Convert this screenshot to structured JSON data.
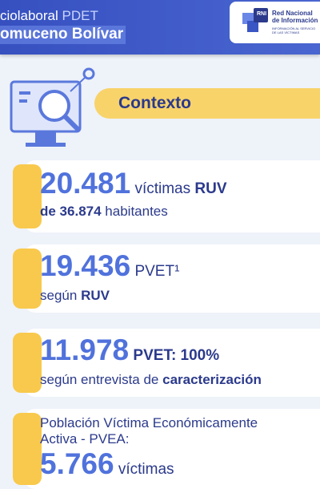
{
  "header": {
    "title_line1": "ciolaboral",
    "title_line1_suffix": "PDET",
    "title_line2": "omuceno Bolívar",
    "logo": {
      "badge": "RNI",
      "name_line1": "Red Nacional",
      "name_line2": "de Información",
      "tagline_line1": "INFORMACIÓN AL SERVICIO",
      "tagline_line2": "DE LAS VÍCTIMAS"
    }
  },
  "section": {
    "title": "Contexto"
  },
  "cards": [
    {
      "number": "20.481",
      "text": "víctimas",
      "text_bold": "RUV",
      "line2_bold": "de 36.874",
      "line2": "habitantes"
    },
    {
      "number": "19.436",
      "text": "PVET¹",
      "line2": "según",
      "line2_bold": "RUV"
    },
    {
      "number": "11.978",
      "text_bold": "PVET: 100%",
      "line2": "según entrevista de",
      "line2_bold": "caracterización"
    },
    {
      "line1": "Población Víctima Económicamente",
      "line2": "Activa - PVEA:",
      "number": "5.766",
      "text": "víctimas"
    }
  ]
}
